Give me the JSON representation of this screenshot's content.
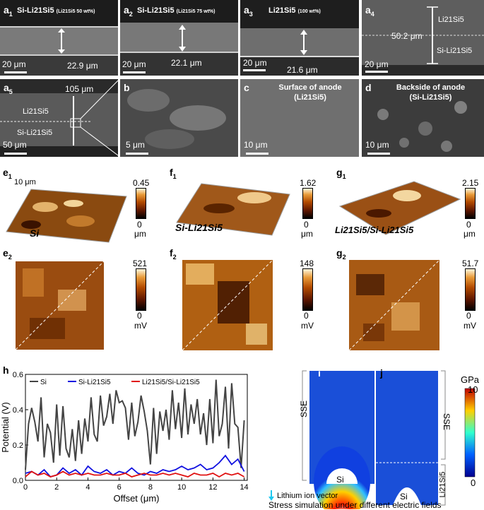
{
  "panels_sem": {
    "a1": {
      "label": "a",
      "sub": "1",
      "title": "Si-Li21Si5",
      "note": "(Li21Si5 50 wt%)",
      "thickness": "22.9 μm",
      "scale": "20 μm"
    },
    "a2": {
      "label": "a",
      "sub": "2",
      "title": "Si-Li21Si5",
      "note": "(Li21Si5 75 wt%)",
      "thickness": "22.1 μm",
      "scale": "20 μm"
    },
    "a3": {
      "label": "a",
      "sub": "3",
      "title": "Li21Si5",
      "note": "(100 wt%)",
      "thickness": "21.6 μm",
      "scale": "20 μm"
    },
    "a4": {
      "label": "a",
      "sub": "4",
      "thickness": "50.2 μm",
      "layer_top": "Li21Si5",
      "layer_bottom": "Si-Li21Si5",
      "scale": "20 μm"
    },
    "a5": {
      "label": "a",
      "sub": "5",
      "thickness": "105 μm",
      "layer_top": "Li21Si5",
      "layer_bottom": "Si-Li21Si5",
      "scale": "50 μm"
    },
    "b": {
      "label": "b",
      "scale": "5 μm"
    },
    "c": {
      "label": "c",
      "title_line1": "Surface of anode",
      "title_line2": "(Li21Si5)",
      "scale": "10 μm"
    },
    "d": {
      "label": "d",
      "title_line1": "Backside of anode",
      "title_line2": "(Si-Li21Si5)",
      "scale": "10 μm"
    }
  },
  "afm": {
    "e1": {
      "label": "e",
      "sub": "1",
      "sample": "Si",
      "size": "10 μm",
      "cmax": "0.45",
      "cmin": "0",
      "unit": "μm"
    },
    "f1": {
      "label": "f",
      "sub": "1",
      "sample": "Si-Li21Si5",
      "cmax": "1.62",
      "cmin": "0",
      "unit": "μm"
    },
    "g1": {
      "label": "g",
      "sub": "1",
      "sample": "Li21Si5/Si-Li21Si5",
      "cmax": "2.15",
      "cmin": "0",
      "unit": "μm"
    },
    "e2": {
      "label": "e",
      "sub": "2",
      "cmax": "521",
      "cmin": "0",
      "unit": "mV"
    },
    "f2": {
      "label": "f",
      "sub": "2",
      "cmax": "148",
      "cmin": "0",
      "unit": "mV"
    },
    "g2": {
      "label": "g",
      "sub": "2",
      "cmax": "51.7",
      "cmin": "0",
      "unit": "mV"
    }
  },
  "panel_h": {
    "label": "h"
  },
  "chart_data": {
    "type": "line",
    "xlabel": "Offset (μm)",
    "ylabel": "Potential (V)",
    "xlim": [
      0,
      14.2
    ],
    "ylim": [
      0,
      0.6
    ],
    "xticks": [
      "0",
      "2",
      "4",
      "6",
      "8",
      "10",
      "12",
      "14"
    ],
    "yticks": [
      "0.0",
      "0.2",
      "0.4",
      "0.6"
    ],
    "legend_position": "top",
    "series": [
      {
        "name": "Si",
        "color": "#444444",
        "x": [
          0,
          0.2,
          0.4,
          0.6,
          0.8,
          1.0,
          1.2,
          1.4,
          1.6,
          1.8,
          2.0,
          2.2,
          2.4,
          2.6,
          2.8,
          3.0,
          3.2,
          3.4,
          3.6,
          3.8,
          4.0,
          4.2,
          4.4,
          4.6,
          4.8,
          5.0,
          5.2,
          5.4,
          5.6,
          5.8,
          6.0,
          6.2,
          6.4,
          6.6,
          6.8,
          7.0,
          7.2,
          7.4,
          7.6,
          7.8,
          8.0,
          8.2,
          8.4,
          8.6,
          8.8,
          9.0,
          9.2,
          9.4,
          9.6,
          9.8,
          10.0,
          10.2,
          10.4,
          10.6,
          10.8,
          11.0,
          11.2,
          11.4,
          11.6,
          11.8,
          12.0,
          12.2,
          12.4,
          12.6,
          12.8,
          13.0,
          13.2,
          13.4,
          13.6,
          13.8,
          14.0
        ],
        "y": [
          0.06,
          0.32,
          0.41,
          0.33,
          0.22,
          0.47,
          0.13,
          0.32,
          0.27,
          0.1,
          0.43,
          0.14,
          0.42,
          0.18,
          0.13,
          0.29,
          0.11,
          0.34,
          0.15,
          0.35,
          0.22,
          0.47,
          0.26,
          0.22,
          0.48,
          0.31,
          0.36,
          0.49,
          0.32,
          0.51,
          0.44,
          0.45,
          0.41,
          0.23,
          0.44,
          0.25,
          0.33,
          0.48,
          0.39,
          0.28,
          0.09,
          0.41,
          0.15,
          0.39,
          0.28,
          0.4,
          0.23,
          0.51,
          0.29,
          0.44,
          0.24,
          0.52,
          0.26,
          0.43,
          0.32,
          0.46,
          0.26,
          0.38,
          0.2,
          0.46,
          0.21,
          0.57,
          0.25,
          0.32,
          0.53,
          0.18,
          0.55,
          0.32,
          0.3,
          0.07,
          0.34
        ]
      },
      {
        "name": "Si-Li21Si5",
        "color": "#1010e0",
        "x": [
          0,
          0.4,
          0.8,
          1.2,
          1.6,
          2.0,
          2.4,
          2.8,
          3.2,
          3.6,
          4.0,
          4.4,
          4.8,
          5.2,
          5.6,
          6.0,
          6.4,
          6.8,
          7.2,
          7.6,
          8.0,
          8.4,
          8.8,
          9.2,
          9.6,
          10.0,
          10.4,
          10.8,
          11.2,
          11.6,
          12.0,
          12.4,
          12.8,
          13.2,
          13.6,
          14.0
        ],
        "y": [
          0.04,
          0.05,
          0.03,
          0.06,
          0.02,
          0.03,
          0.07,
          0.04,
          0.06,
          0.03,
          0.08,
          0.05,
          0.04,
          0.06,
          0.03,
          0.05,
          0.04,
          0.07,
          0.04,
          0.03,
          0.05,
          0.04,
          0.06,
          0.05,
          0.06,
          0.08,
          0.06,
          0.07,
          0.09,
          0.06,
          0.07,
          0.1,
          0.14,
          0.09,
          0.12,
          0.05
        ]
      },
      {
        "name": "Li21Si5/Si-Li21Si5",
        "color": "#e01010",
        "x": [
          0,
          0.4,
          0.8,
          1.2,
          1.6,
          2.0,
          2.4,
          2.8,
          3.2,
          3.6,
          4.0,
          4.4,
          4.8,
          5.2,
          5.6,
          6.0,
          6.4,
          6.8,
          7.2,
          7.6,
          8.0,
          8.4,
          8.8,
          9.2,
          9.6,
          10.0,
          10.4,
          10.8,
          11.2,
          11.6,
          12.0,
          12.4,
          12.8,
          13.2,
          13.6,
          14.0
        ],
        "y": [
          0.02,
          0.05,
          0.03,
          0.04,
          0.02,
          0.03,
          0.05,
          0.03,
          0.04,
          0.03,
          0.04,
          0.03,
          0.03,
          0.04,
          0.03,
          0.03,
          0.04,
          0.02,
          0.03,
          0.04,
          0.03,
          0.03,
          0.04,
          0.03,
          0.04,
          0.03,
          0.02,
          0.04,
          0.03,
          0.03,
          0.04,
          0.02,
          0.04,
          0.03,
          0.04,
          0.02
        ]
      }
    ]
  },
  "sim": {
    "i": {
      "label": "i",
      "region": "SSE",
      "particle": "Si"
    },
    "j": {
      "label": "j",
      "region_top": "SSE",
      "region_bottom": "Li21Si5",
      "particle": "Si"
    },
    "cbar_unit": "GPa",
    "cbar_max": "10",
    "cbar_min": "0",
    "legend_vector": "Lithium ion vector",
    "caption": "Stress simulation under different electric fields"
  }
}
